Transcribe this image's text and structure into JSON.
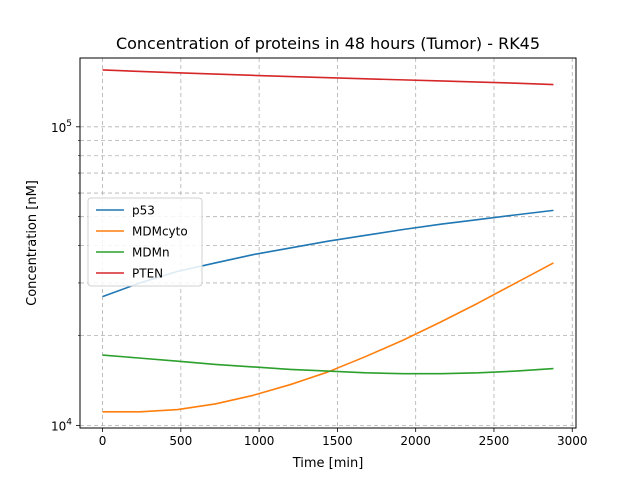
{
  "chart_data": {
    "type": "line",
    "title": "Concentration of proteins in 48 hours (Tumor) - RK45",
    "xlabel": "Time [min]",
    "ylabel": "Concentration [nM]",
    "xlim": [
      -144,
      3024
    ],
    "ylim": [
      9800,
      170000
    ],
    "yscale": "log",
    "grid": true,
    "legend_position": "center-left",
    "x_ticks": [
      {
        "value": 0,
        "label": "0"
      },
      {
        "value": 500,
        "label": "500"
      },
      {
        "value": 1000,
        "label": "1000"
      },
      {
        "value": 1500,
        "label": "1500"
      },
      {
        "value": 2000,
        "label": "2000"
      },
      {
        "value": 2500,
        "label": "2500"
      },
      {
        "value": 3000,
        "label": "3000"
      }
    ],
    "y_major_ticks": [
      {
        "value": 10000,
        "base": "10",
        "exp": "4"
      },
      {
        "value": 100000,
        "base": "10",
        "exp": "5"
      }
    ],
    "y_minor_ticks": [
      20000,
      30000,
      40000,
      50000,
      60000,
      70000,
      80000,
      90000
    ],
    "x": [
      0,
      240,
      480,
      720,
      960,
      1200,
      1440,
      1680,
      1920,
      2160,
      2400,
      2640,
      2880
    ],
    "series": [
      {
        "name": "p53",
        "color": "#1f77b4",
        "values": [
          27000,
          30000,
          32800,
          35000,
          37300,
          39300,
          41400,
          43300,
          45300,
          47200,
          48900,
          50700,
          52500
        ]
      },
      {
        "name": "MDMcyto",
        "color": "#ff7f0e",
        "values": [
          11100,
          11100,
          11300,
          11800,
          12600,
          13700,
          15100,
          17000,
          19300,
          22200,
          25700,
          30000,
          35000
        ]
      },
      {
        "name": "MDMn",
        "color": "#2ca02c",
        "values": [
          17200,
          16800,
          16400,
          16000,
          15700,
          15400,
          15200,
          15000,
          14900,
          14900,
          15000,
          15200,
          15500
        ]
      },
      {
        "name": "PTEN",
        "color": "#d62728",
        "values": [
          155000,
          153300,
          151700,
          150200,
          148700,
          147300,
          146000,
          144800,
          143600,
          142400,
          141200,
          140000,
          138500
        ]
      }
    ]
  }
}
